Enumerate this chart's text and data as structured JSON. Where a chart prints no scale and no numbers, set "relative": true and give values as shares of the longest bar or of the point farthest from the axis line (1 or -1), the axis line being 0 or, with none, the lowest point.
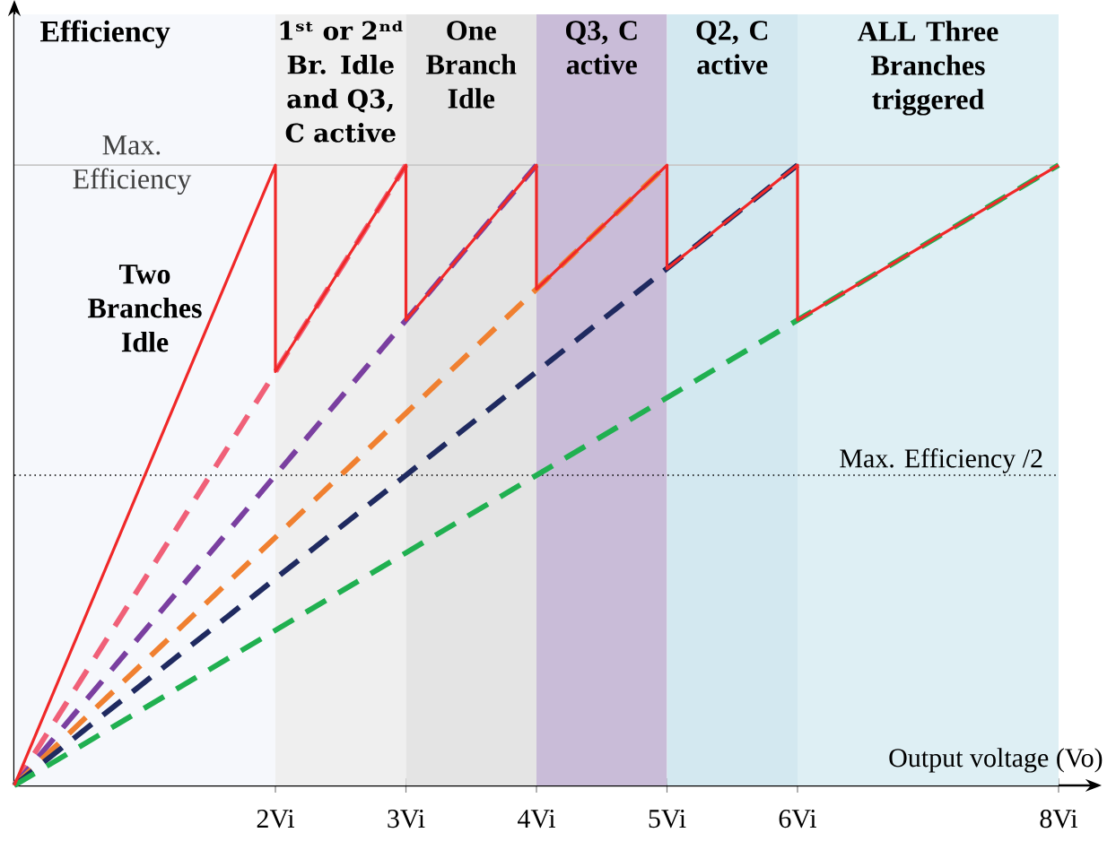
{
  "chart_data": {
    "type": "line",
    "relative": true,
    "ylabel": "Efficiency",
    "xlabel": "Output voltage (Vo)",
    "xlim": [
      0,
      8
    ],
    "xticks": [
      {
        "value": 2,
        "label": "2Vi"
      },
      {
        "value": 3,
        "label": "3Vi"
      },
      {
        "value": 4,
        "label": "4Vi"
      },
      {
        "value": 5,
        "label": "5Vi"
      },
      {
        "value": 6,
        "label": "6Vi"
      },
      {
        "value": 8,
        "label": "8Vi"
      }
    ],
    "series": [
      {
        "color": "#f06078",
        "line_style": "dashed",
        "x": [
          0,
          3
        ],
        "values": [
          0,
          1
        ]
      },
      {
        "color": "#7a3fa0",
        "line_style": "dashed",
        "x": [
          0,
          4
        ],
        "values": [
          0,
          1
        ]
      },
      {
        "color": "#f08030",
        "line_style": "dashed",
        "x": [
          0,
          5
        ],
        "values": [
          0,
          1
        ]
      },
      {
        "color": "#1f2a60",
        "line_style": "dashed",
        "x": [
          0,
          6
        ],
        "values": [
          0,
          1
        ]
      },
      {
        "color": "#20b050",
        "line_style": "dashed",
        "x": [
          0,
          8
        ],
        "values": [
          0,
          1
        ]
      },
      {
        "color": "#f02828",
        "line_style": "solid",
        "x": [
          0,
          2,
          2,
          3,
          3,
          4,
          4,
          5,
          5,
          6,
          6,
          8
        ],
        "values": [
          0,
          1,
          0.667,
          1,
          0.75,
          1,
          0.8,
          1,
          0.833,
          1,
          0.75,
          1
        ]
      }
    ],
    "bands": [
      {
        "axis": "x",
        "from": 0,
        "to": 2,
        "label": "Two Branches Idle",
        "color": "#f6f8fc"
      },
      {
        "axis": "x",
        "from": 2,
        "to": 3,
        "label": "1ˢᵗ or 2ⁿᵈ Br. Idle and Q3, C active",
        "color": "#efefef"
      },
      {
        "axis": "x",
        "from": 3,
        "to": 4,
        "label": "One Branch Idle",
        "color": "#e4e4e4"
      },
      {
        "axis": "x",
        "from": 4,
        "to": 5,
        "label": "Q3, C active",
        "color": "#c9bcd8"
      },
      {
        "axis": "x",
        "from": 5,
        "to": 6,
        "label": "Q2, C active",
        "color": "#d3e8f0"
      },
      {
        "axis": "x",
        "from": 6,
        "to": 8,
        "label": "ALL Three Branches triggered",
        "color": "#deeff4"
      }
    ],
    "ref_lines": [
      {
        "axis": "y",
        "value": 1,
        "label": "Max. Efficiency",
        "color": "#c8c8c8",
        "line_style": "solid"
      },
      {
        "axis": "y",
        "value": 0.5,
        "label": "Max. Efficiency /2",
        "color": "#000000",
        "line_style": "dotted"
      }
    ],
    "marker": "none",
    "grid": false
  }
}
